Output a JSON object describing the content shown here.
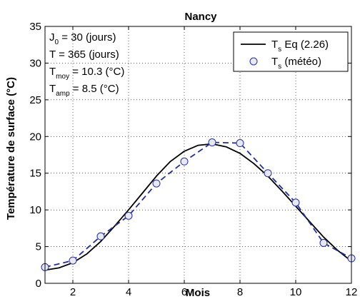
{
  "chart_data": {
    "type": "line",
    "title": "Nancy",
    "xlabel": "Mois",
    "ylabel": "Température de surface (°C)",
    "xlim": [
      1,
      12
    ],
    "ylim": [
      0,
      35
    ],
    "xticks": [
      2,
      4,
      6,
      8,
      10,
      12
    ],
    "yticks": [
      0,
      5,
      10,
      15,
      20,
      25,
      30,
      35
    ],
    "grid": true,
    "legend_position": "top-right",
    "annotations": [
      {
        "main": "J",
        "sub": "0",
        "rest": " = 30 (jours)"
      },
      {
        "main": "T",
        "sub": "",
        "rest": " = 365 (jours)"
      },
      {
        "main": "T",
        "sub": "moy",
        "rest": " = 10.3 (°C)"
      },
      {
        "main": "T",
        "sub": "amp",
        "rest": " = 8.5 (°C)"
      }
    ],
    "series": [
      {
        "name_main": "T",
        "name_sub": "s",
        "name_rest": " Eq (2.26)",
        "style": "solid-line",
        "color": "#000000",
        "x": [
          1,
          1.5,
          2,
          2.5,
          3,
          3.5,
          4,
          4.5,
          5,
          5.5,
          6,
          6.5,
          7,
          7.5,
          8,
          8.5,
          9,
          9.5,
          10,
          10.5,
          11,
          11.5,
          12
        ],
        "y": [
          1.8,
          2.1,
          2.8,
          4.0,
          5.7,
          7.8,
          10.0,
          12.3,
          14.6,
          16.6,
          18.0,
          18.8,
          19.0,
          18.6,
          17.7,
          16.3,
          14.6,
          12.6,
          10.5,
          8.4,
          6.3,
          4.5,
          3.0
        ]
      },
      {
        "name_main": "T",
        "name_sub": "s",
        "name_rest": " (météo)",
        "style": "circle-markers-dashed",
        "color": "#1f2ea8",
        "x": [
          1,
          2,
          3,
          4,
          5,
          6,
          7,
          8,
          9,
          10,
          11,
          12
        ],
        "y": [
          2.2,
          3.1,
          6.4,
          9.2,
          13.6,
          16.6,
          19.2,
          19.1,
          15.0,
          11.0,
          5.5,
          3.4
        ]
      }
    ]
  }
}
